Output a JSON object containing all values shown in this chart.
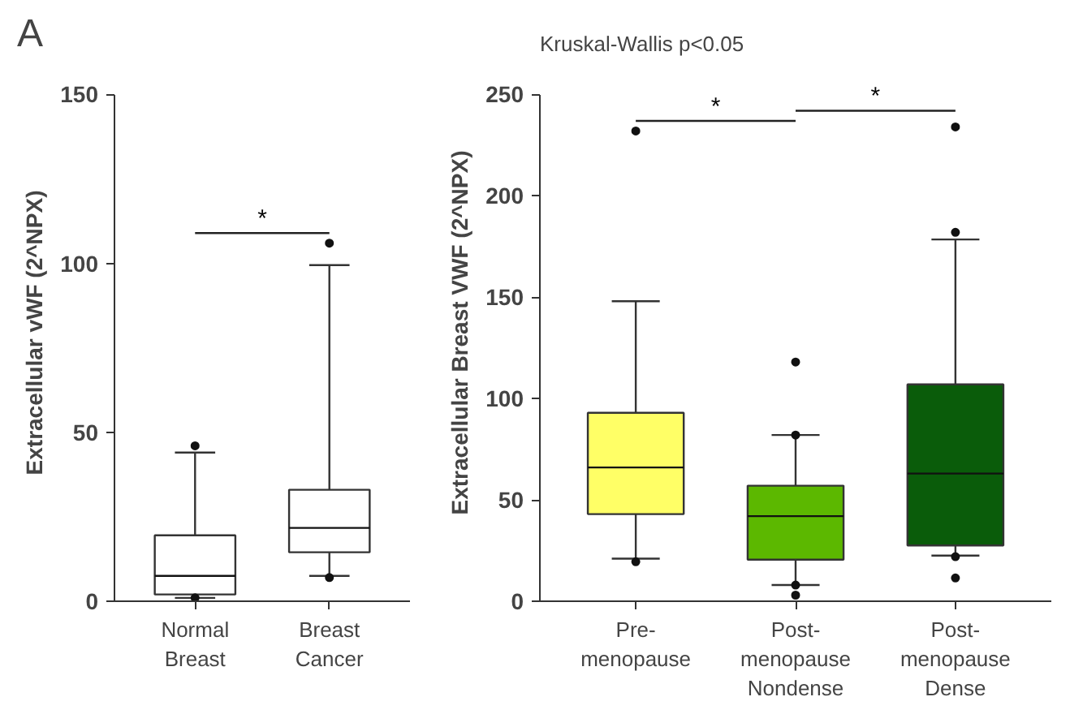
{
  "chart_data": [
    {
      "type": "box",
      "ylabel": "Extracellular vWF (2^NPX)",
      "categories": [
        "Normal\nBreast",
        "Breast\nCancer"
      ],
      "series": [
        {
          "color": "#ffffff",
          "boxes": [
            {
              "low": 1,
              "q1": 2,
              "median": 7.5,
              "q3": 19.5,
              "high": 44,
              "outliers": [
                46,
                1
              ]
            },
            {
              "low": 7.5,
              "q1": 14.5,
              "median": 21.7,
              "q3": 33,
              "high": 99.5,
              "outliers": [
                106,
                7
              ]
            }
          ]
        }
      ],
      "ylim": [
        0,
        150
      ],
      "yticks": [
        0,
        50,
        100,
        150
      ],
      "grid": false,
      "annotations": [
        "A",
        "*"
      ]
    },
    {
      "type": "box",
      "title": "Kruskal-Wallis p<0.05",
      "ylabel": "Extracellular Breast VWF (2^NPX)",
      "categories": [
        "Pre-\nmenopause",
        "Post-\nmenopause\nNondense",
        "Post-\nmenopause\nDense"
      ],
      "series": [
        {
          "colors": [
            "#ffff66",
            "#5cb800",
            "#0a5c0a"
          ],
          "boxes": [
            {
              "low": 21,
              "q1": 43,
              "median": 66,
              "q3": 93,
              "high": 148,
              "outliers": [
                19.5,
                232
              ]
            },
            {
              "low": 8,
              "q1": 20.5,
              "median": 42,
              "q3": 57,
              "high": 82,
              "outliers": [
                118,
                82,
                8,
                3
              ]
            },
            {
              "low": 22.5,
              "q1": 27.5,
              "median": 63,
              "q3": 107,
              "high": 178.5,
              "outliers": [
                182,
                234,
                22,
                11.5
              ]
            }
          ]
        }
      ],
      "ylim": [
        0,
        250
      ],
      "yticks": [
        0,
        50,
        100,
        150,
        200,
        250
      ],
      "grid": false,
      "annotations": [
        "*",
        "*"
      ]
    }
  ]
}
